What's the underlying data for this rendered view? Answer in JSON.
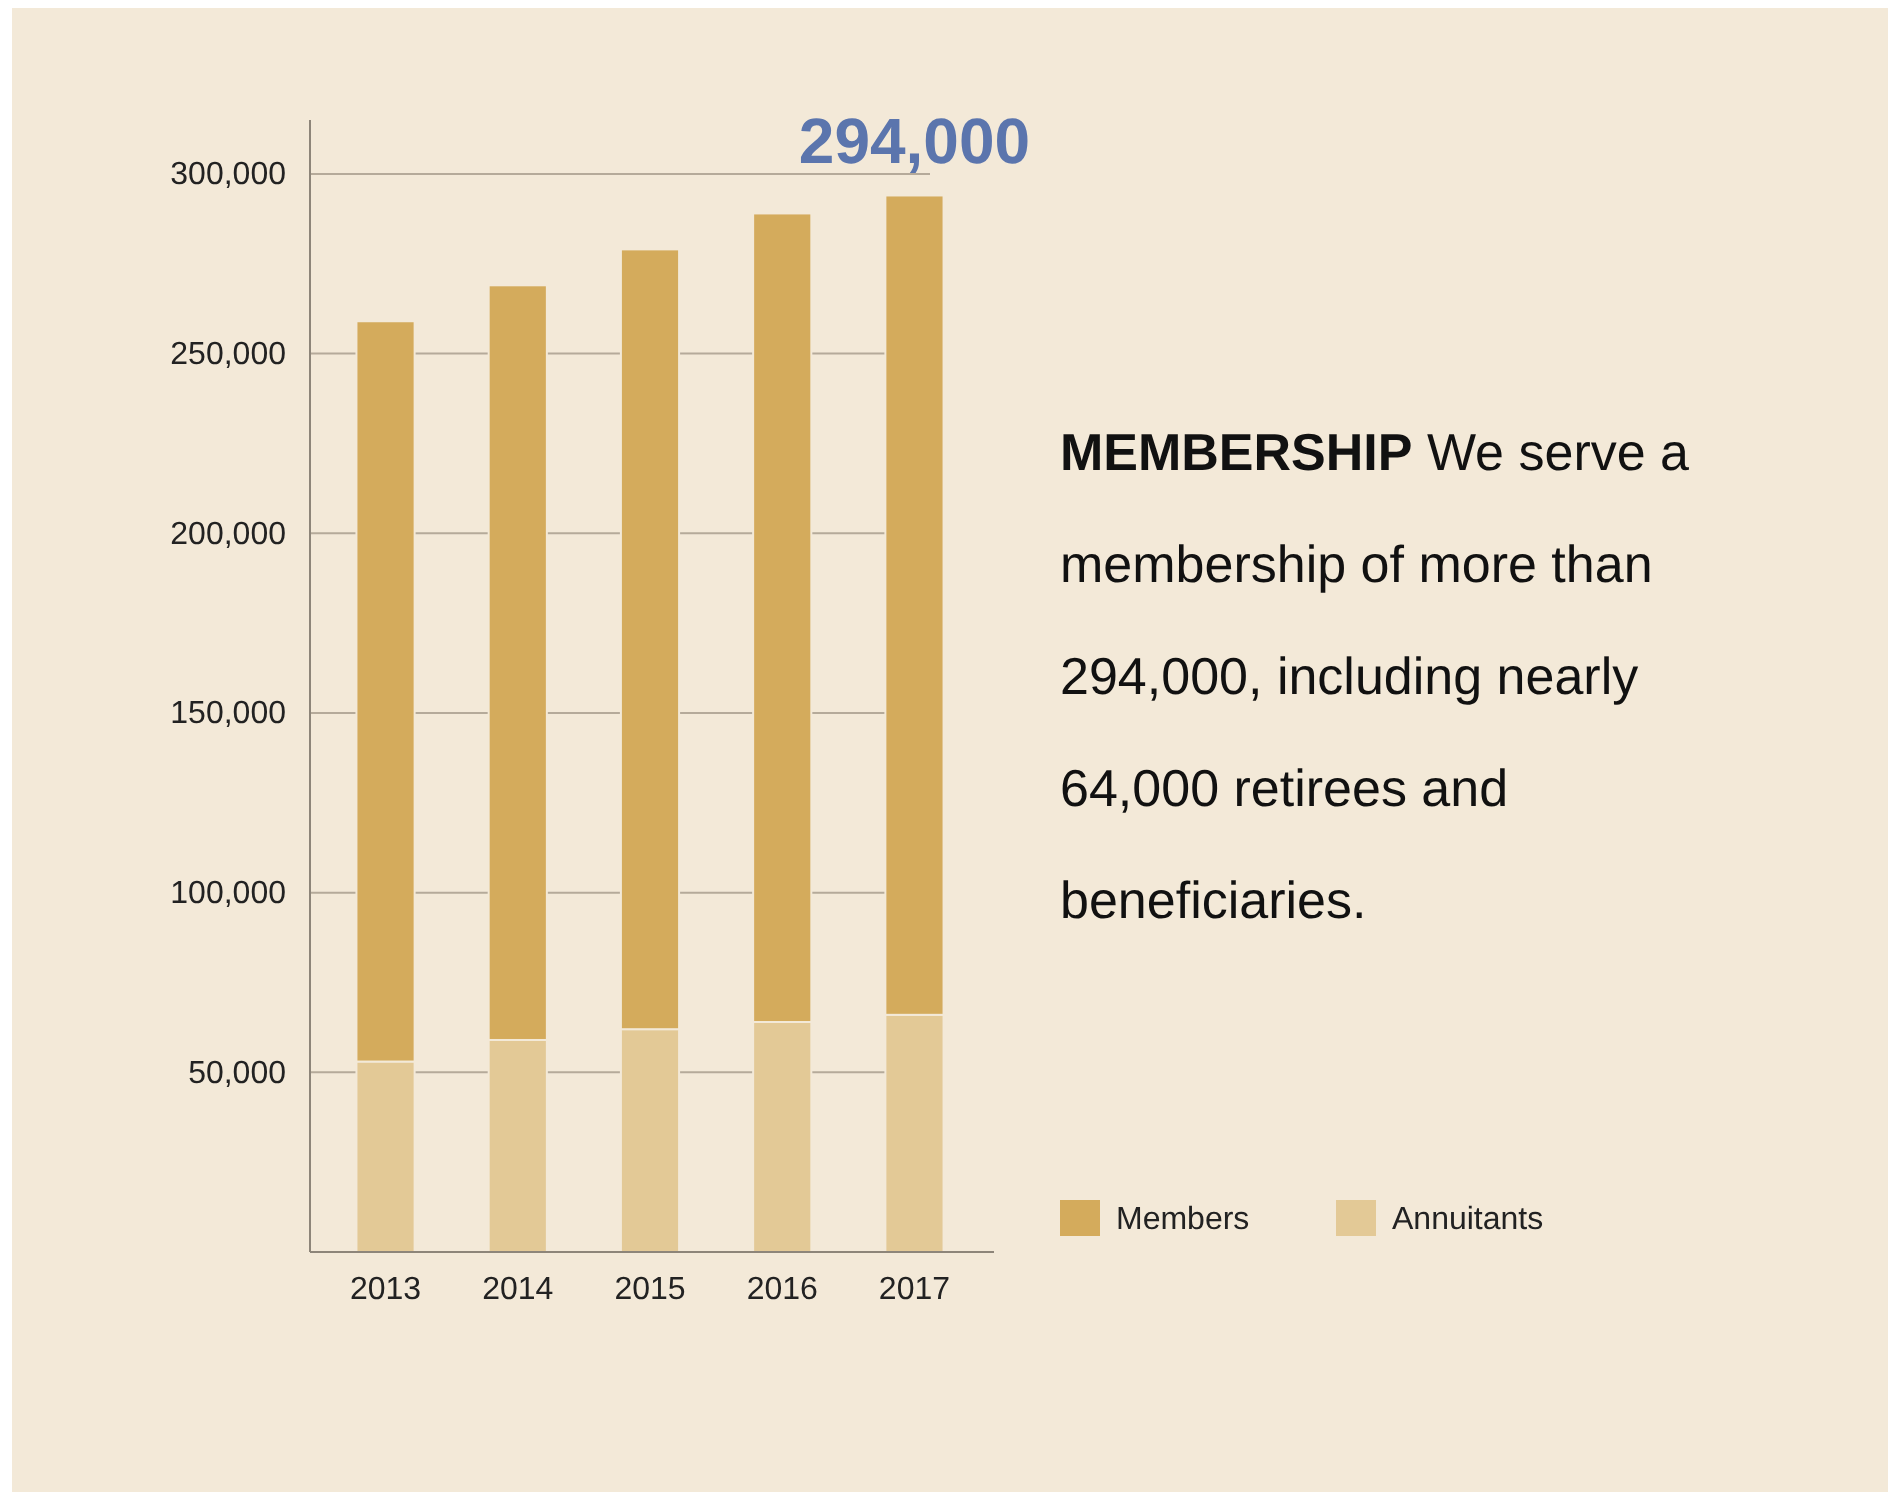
{
  "chart_data": {
    "type": "bar",
    "title": "MEMBERSHIP",
    "subtitle": "We serve a membership of more than 294,000, including nearly 64,000 retirees and beneficiaries.",
    "categories": [
      "2013",
      "2014",
      "2015",
      "2016",
      "2017"
    ],
    "stacked": true,
    "series": [
      {
        "name": "Annuitants",
        "color": "#e3c996",
        "values": [
          53000,
          59000,
          62000,
          64000,
          66000
        ]
      },
      {
        "name": "Members",
        "color": "#d4ab5c",
        "values": [
          206000,
          210000,
          217000,
          225000,
          228000
        ]
      }
    ],
    "ylim": [
      0,
      315000
    ],
    "yticks": [
      {
        "value": 50000,
        "label": "50,000"
      },
      {
        "value": 100000,
        "label": "100,000"
      },
      {
        "value": 150000,
        "label": "150,000"
      },
      {
        "value": 200000,
        "label": "200,000"
      },
      {
        "value": 250000,
        "label": "250,000"
      },
      {
        "value": 300000,
        "label": "300,000"
      }
    ],
    "grid": "y",
    "legend": "right",
    "annotations": [
      {
        "text": "294,000",
        "x": "2017",
        "y": 294000
      }
    ]
  }
}
